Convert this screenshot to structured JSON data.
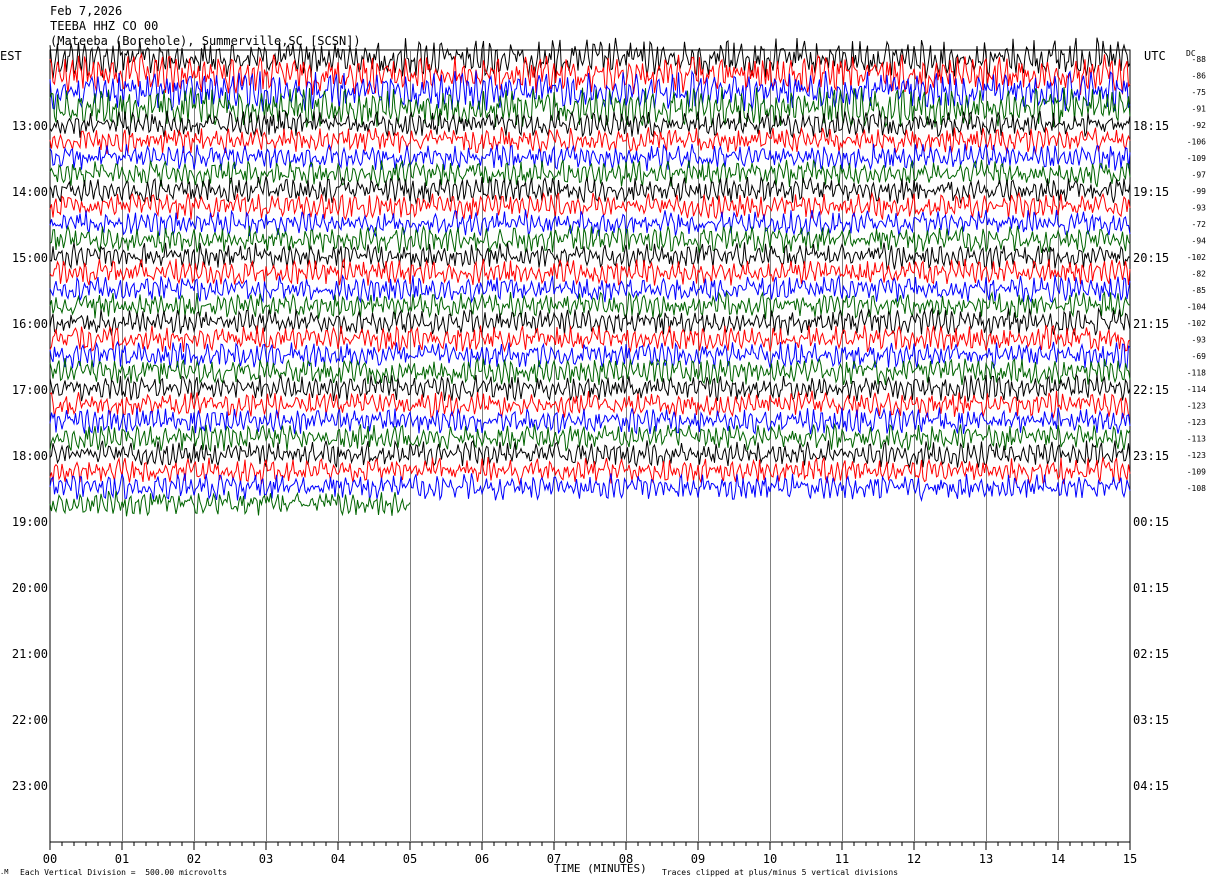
{
  "header": {
    "date": "Feb 7,2026",
    "station": "TEEBA HHZ CO 00",
    "location": "(Mateeba (Borehole), Summerville,SC [SCSN])"
  },
  "axis_labels": {
    "left": "EST",
    "right": "UTC",
    "dc": "DC"
  },
  "footer": {
    "scale": "Each Vertical Division =  500.00 microvolts",
    "xlabel": "TIME (MINUTES)",
    "clip": "Traces clipped at plus/minus 5 vertical divisions"
  },
  "colors": {
    "trace_cycle": [
      "#000000",
      "#ff0000",
      "#0000ff",
      "#006400"
    ],
    "grid": "#808080"
  },
  "chart_data": {
    "type": "line",
    "title": "TEEBA HHZ CO 00",
    "xlabel": "TIME (MINUTES)",
    "x_ticks": [
      "00",
      "01",
      "02",
      "03",
      "04",
      "05",
      "06",
      "07",
      "08",
      "09",
      "10",
      "11",
      "12",
      "13",
      "14",
      "15"
    ],
    "xlim": [
      0,
      15
    ],
    "est_hours": [
      "13:00",
      "14:00",
      "15:00",
      "16:00",
      "17:00",
      "18:00",
      "19:00",
      "20:00",
      "21:00",
      "22:00",
      "23:00"
    ],
    "utc_hours": [
      "18:15",
      "19:15",
      "20:15",
      "21:15",
      "22:15",
      "23:15",
      "00:15",
      "01:15",
      "02:15",
      "03:15",
      "04:15"
    ],
    "rows_per_hour": 4,
    "first_row_offset": 4,
    "row_count": 28,
    "last_row_end_minute": 5,
    "dc_offsets": [
      "-88",
      "-86",
      "-75",
      "-91",
      "-92",
      "-106",
      "-109",
      "-97",
      "-99",
      "-93",
      "-72",
      "-94",
      "-102",
      "-82",
      "-85",
      "-104",
      "-102",
      "-93",
      "-69",
      "-118",
      "-114",
      "-123",
      "-123",
      "-113",
      "-123",
      "-109",
      "-108"
    ]
  }
}
